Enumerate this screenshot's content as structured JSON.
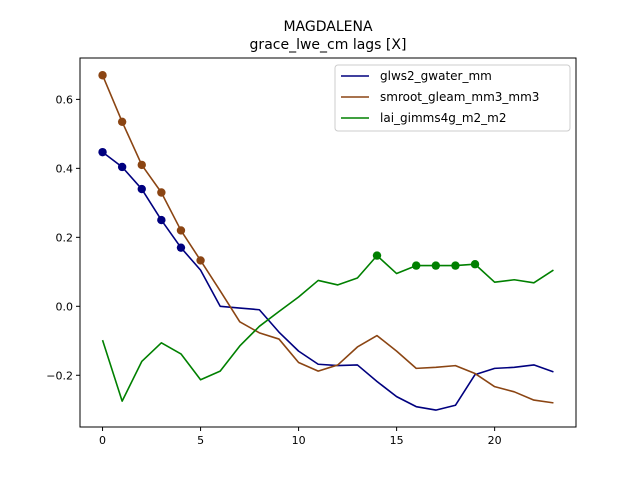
{
  "chart_data": {
    "type": "line",
    "title": "MAGDALENA",
    "subtitle": "grace_lwe_cm lags [X]",
    "xlabel": "",
    "ylabel": "",
    "xlim": [
      -1.15,
      24.15
    ],
    "ylim": [
      -0.35,
      0.72
    ],
    "xticks": [
      0,
      5,
      10,
      15,
      20
    ],
    "yticks": [
      -0.2,
      0.0,
      0.2,
      0.4,
      0.6
    ],
    "ytick_labels": [
      "−0.2",
      "0.0",
      "0.2",
      "0.4",
      "0.6"
    ],
    "legend_position": "upper-right",
    "x": [
      0,
      1,
      2,
      3,
      4,
      5,
      6,
      7,
      8,
      9,
      10,
      11,
      12,
      13,
      14,
      15,
      16,
      17,
      18,
      19,
      20,
      21,
      22,
      23
    ],
    "series": [
      {
        "name": "glws2_gwater_mm",
        "color": "#00007f",
        "values": [
          0.447,
          0.404,
          0.34,
          0.25,
          0.17,
          0.105,
          0.0,
          -0.005,
          -0.01,
          -0.075,
          -0.13,
          -0.168,
          -0.172,
          -0.17,
          -0.218,
          -0.262,
          -0.291,
          -0.301,
          -0.287,
          -0.198,
          -0.18,
          -0.177,
          -0.17,
          -0.19
        ],
        "markers": [
          0,
          1,
          2,
          3,
          4
        ]
      },
      {
        "name": "smroot_gleam_mm3_mm3",
        "color": "#8b4513",
        "values": [
          0.67,
          0.535,
          0.41,
          0.33,
          0.22,
          0.133,
          0.045,
          -0.045,
          -0.077,
          -0.095,
          -0.163,
          -0.188,
          -0.17,
          -0.118,
          -0.085,
          -0.13,
          -0.18,
          -0.177,
          -0.172,
          -0.195,
          -0.233,
          -0.248,
          -0.272,
          -0.28
        ],
        "markers": [
          0,
          1,
          2,
          3,
          4,
          5
        ]
      },
      {
        "name": "lai_gimms4g_m2_m2",
        "color": "#008000",
        "values": [
          -0.098,
          -0.275,
          -0.16,
          -0.106,
          -0.138,
          -0.213,
          -0.188,
          -0.115,
          -0.058,
          -0.015,
          0.027,
          0.075,
          0.062,
          0.082,
          0.147,
          0.095,
          0.118,
          0.118,
          0.118,
          0.122,
          0.07,
          0.077,
          0.068,
          0.105
        ],
        "markers": [
          14,
          16,
          17,
          18,
          19
        ]
      }
    ]
  }
}
